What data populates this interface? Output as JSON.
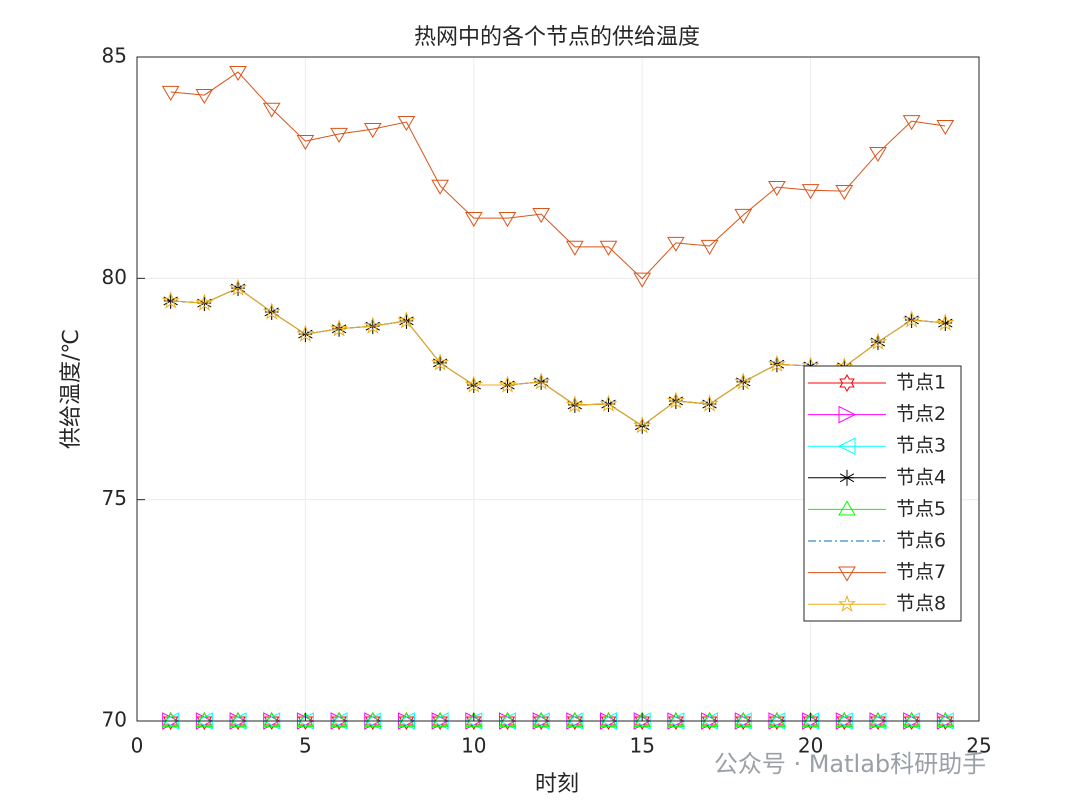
{
  "chart_data": {
    "type": "line",
    "title": "热网中的各个节点的供给温度",
    "xlabel": "时刻",
    "ylabel": "供给温度/℃",
    "x": [
      1,
      2,
      3,
      4,
      5,
      6,
      7,
      8,
      9,
      10,
      11,
      12,
      13,
      14,
      15,
      16,
      17,
      18,
      19,
      20,
      21,
      22,
      23,
      24
    ],
    "xlim": [
      0,
      25
    ],
    "xticks": [
      0,
      5,
      10,
      15,
      20,
      25
    ],
    "ylim": [
      70,
      85
    ],
    "yticks": [
      70,
      75,
      80,
      85
    ],
    "grid": true,
    "legend": "east",
    "series": [
      {
        "name": "节点1",
        "color": "#ff0000",
        "marker": "hexagram",
        "values": [
          70,
          70,
          70,
          70,
          70,
          70,
          70,
          70,
          70,
          70,
          70,
          70,
          70,
          70,
          70,
          70,
          70,
          70,
          70,
          70,
          70,
          70,
          70,
          70
        ]
      },
      {
        "name": "节点2",
        "color": "#ff00ff",
        "marker": "triangle-right",
        "values": [
          70,
          70,
          70,
          70,
          70,
          70,
          70,
          70,
          70,
          70,
          70,
          70,
          70,
          70,
          70,
          70,
          70,
          70,
          70,
          70,
          70,
          70,
          70,
          70
        ]
      },
      {
        "name": "节点3",
        "color": "#00ffff",
        "marker": "triangle-left",
        "values": [
          70,
          70,
          70,
          70,
          70,
          70,
          70,
          70,
          70,
          70,
          70,
          70,
          70,
          70,
          70,
          70,
          70,
          70,
          70,
          70,
          70,
          70,
          70,
          70
        ]
      },
      {
        "name": "节点4",
        "color": "#000000",
        "marker": "asterisk",
        "values": [
          79.49,
          79.44,
          79.78,
          79.24,
          78.74,
          78.86,
          78.92,
          79.04,
          78.09,
          77.59,
          77.59,
          77.66,
          77.14,
          77.16,
          76.67,
          77.23,
          77.16,
          77.66,
          78.06,
          78.02,
          78.0,
          78.56,
          79.06,
          78.99
        ]
      },
      {
        "name": "节点5",
        "color": "#00ff00",
        "marker": "triangle-up",
        "values": [
          70,
          70,
          70,
          70,
          70,
          70,
          70,
          70,
          70,
          70,
          70,
          70,
          70,
          70,
          70,
          70,
          70,
          70,
          70,
          70,
          70,
          70,
          70,
          70
        ]
      },
      {
        "name": "节点6",
        "color": "#0072bd",
        "marker": "none",
        "linestyle": "dashdot",
        "values": [
          70,
          70,
          70,
          70,
          70,
          70,
          70,
          70,
          70,
          70,
          70,
          70,
          70,
          70,
          70,
          70,
          70,
          70,
          70,
          70,
          70,
          70,
          70,
          70
        ]
      },
      {
        "name": "节点7",
        "color": "#d95319",
        "marker": "triangle-down",
        "values": [
          84.21,
          84.14,
          84.66,
          83.83,
          83.1,
          83.26,
          83.37,
          83.53,
          82.09,
          81.36,
          81.36,
          81.45,
          80.71,
          80.71,
          79.99,
          80.8,
          80.73,
          81.43,
          82.06,
          81.99,
          81.97,
          82.83,
          83.55,
          83.44
        ]
      },
      {
        "name": "节点8",
        "color": "#edb120",
        "marker": "pentagram",
        "values": [
          79.49,
          79.44,
          79.78,
          79.24,
          78.74,
          78.86,
          78.92,
          79.04,
          78.09,
          77.59,
          77.59,
          77.66,
          77.14,
          77.16,
          76.67,
          77.23,
          77.16,
          77.66,
          78.06,
          78.02,
          78.0,
          78.56,
          79.06,
          78.99
        ]
      }
    ]
  },
  "watermark": "公众号 · Matlab科研助手"
}
